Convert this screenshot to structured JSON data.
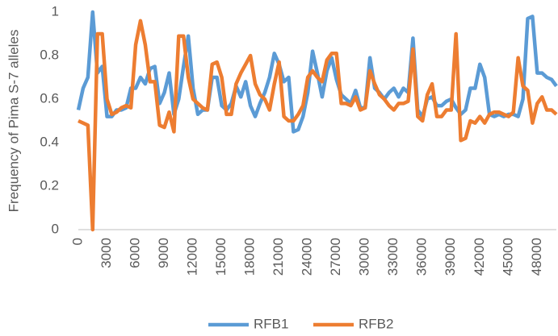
{
  "chart_data": {
    "type": "line",
    "y_label": "Frequency of Pima S-7 alleles",
    "x": [
      0,
      500,
      1000,
      1500,
      2000,
      2500,
      3000,
      3500,
      4000,
      4500,
      5000,
      5500,
      6000,
      6500,
      7000,
      7500,
      8000,
      8500,
      9000,
      9500,
      10000,
      10500,
      11000,
      11500,
      12000,
      12500,
      13000,
      13500,
      14000,
      14500,
      15000,
      15500,
      16000,
      16500,
      17000,
      17500,
      18000,
      18500,
      19000,
      19500,
      20000,
      20500,
      21000,
      21500,
      22000,
      22500,
      23000,
      23500,
      24000,
      24500,
      25000,
      25500,
      26000,
      26500,
      27000,
      27500,
      28000,
      28500,
      29000,
      29500,
      30000,
      30500,
      31000,
      31500,
      32000,
      32500,
      33000,
      33500,
      34000,
      34500,
      35000,
      35500,
      36000,
      36500,
      37000,
      37500,
      38000,
      38500,
      39000,
      39500,
      40000,
      40500,
      41000,
      41500,
      42000,
      42500,
      43000,
      43500,
      44000,
      44500,
      45000,
      45500,
      46000,
      46500,
      47000,
      47500,
      48000,
      48500,
      49000,
      49500,
      50000
    ],
    "series": [
      {
        "name": "RFB1",
        "color": "#5b9bd5",
        "values": [
          0.55,
          0.65,
          0.7,
          1.0,
          0.72,
          0.75,
          0.52,
          0.52,
          0.55,
          0.55,
          0.56,
          0.65,
          0.65,
          0.7,
          0.67,
          0.74,
          0.75,
          0.58,
          0.63,
          0.72,
          0.53,
          0.6,
          0.75,
          0.89,
          0.65,
          0.53,
          0.55,
          0.55,
          0.7,
          0.7,
          0.57,
          0.55,
          0.58,
          0.66,
          0.61,
          0.68,
          0.57,
          0.52,
          0.58,
          0.63,
          0.7,
          0.81,
          0.76,
          0.68,
          0.7,
          0.45,
          0.46,
          0.52,
          0.63,
          0.82,
          0.72,
          0.61,
          0.73,
          0.79,
          0.69,
          0.62,
          0.6,
          0.58,
          0.64,
          0.56,
          0.56,
          0.79,
          0.65,
          0.63,
          0.6,
          0.63,
          0.65,
          0.61,
          0.65,
          0.63,
          0.88,
          0.55,
          0.52,
          0.6,
          0.61,
          0.57,
          0.57,
          0.59,
          0.6,
          0.56,
          0.53,
          0.55,
          0.65,
          0.65,
          0.76,
          0.7,
          0.53,
          0.52,
          0.53,
          0.52,
          0.53,
          0.53,
          0.52,
          0.6,
          0.97,
          0.98,
          0.72,
          0.72,
          0.7,
          0.69,
          0.66
        ]
      },
      {
        "name": "RFB2",
        "color": "#ed7d31",
        "values": [
          0.5,
          0.49,
          0.48,
          0,
          0.9,
          0.9,
          0.6,
          0.53,
          0.54,
          0.56,
          0.57,
          0.56,
          0.85,
          0.96,
          0.85,
          0.68,
          0.68,
          0.48,
          0.47,
          0.54,
          0.45,
          0.89,
          0.89,
          0.7,
          0.6,
          0.58,
          0.56,
          0.55,
          0.76,
          0.77,
          0.7,
          0.53,
          0.53,
          0.67,
          0.72,
          0.76,
          0.8,
          0.67,
          0.62,
          0.6,
          0.55,
          0.67,
          0.77,
          0.52,
          0.5,
          0.5,
          0.53,
          0.57,
          0.7,
          0.73,
          0.7,
          0.68,
          0.78,
          0.81,
          0.81,
          0.58,
          0.58,
          0.57,
          0.61,
          0.55,
          0.56,
          0.73,
          0.67,
          0.62,
          0.6,
          0.57,
          0.55,
          0.58,
          0.58,
          0.59,
          0.83,
          0.52,
          0.5,
          0.62,
          0.67,
          0.52,
          0.52,
          0.55,
          0.55,
          0.9,
          0.41,
          0.42,
          0.5,
          0.49,
          0.52,
          0.49,
          0.53,
          0.54,
          0.54,
          0.53,
          0.52,
          0.54,
          0.79,
          0.66,
          0.64,
          0.49,
          0.58,
          0.61,
          0.55,
          0.55,
          0.53
        ]
      }
    ],
    "xlim": [
      0,
      50000
    ],
    "xticks": [
      0,
      3000,
      6000,
      9000,
      12000,
      15000,
      18000,
      21000,
      24000,
      27000,
      30000,
      33000,
      36000,
      39000,
      42000,
      45000,
      48000
    ],
    "ylim": [
      0,
      1
    ],
    "yticks": [
      0,
      0.2,
      0.4,
      0.6,
      0.8,
      1
    ],
    "grid": false,
    "legend": "bottom"
  }
}
